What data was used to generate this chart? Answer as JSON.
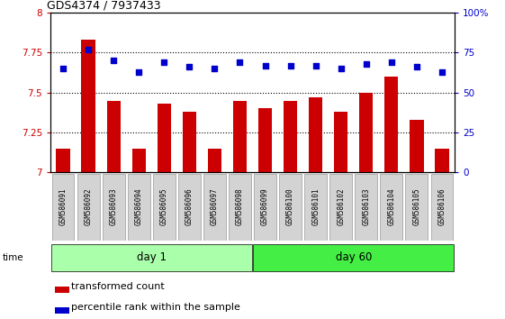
{
  "title": "GDS4374 / 7937433",
  "samples": [
    "GSM586091",
    "GSM586092",
    "GSM586093",
    "GSM586094",
    "GSM586095",
    "GSM586096",
    "GSM586097",
    "GSM586098",
    "GSM586099",
    "GSM586100",
    "GSM586101",
    "GSM586102",
    "GSM586103",
    "GSM586104",
    "GSM586105",
    "GSM586106"
  ],
  "bar_values": [
    7.15,
    7.83,
    7.45,
    7.15,
    7.43,
    7.38,
    7.15,
    7.45,
    7.4,
    7.45,
    7.47,
    7.38,
    7.5,
    7.6,
    7.33,
    7.15
  ],
  "dot_values": [
    65,
    77,
    70,
    63,
    69,
    66,
    65,
    69,
    67,
    67,
    67,
    65,
    68,
    69,
    66,
    63
  ],
  "bar_color": "#cc0000",
  "dot_color": "#0000cc",
  "ylim_left": [
    7.0,
    8.0
  ],
  "ylim_right": [
    0,
    100
  ],
  "yticks_left": [
    7.0,
    7.25,
    7.5,
    7.75,
    8.0
  ],
  "yticks_right": [
    0,
    25,
    50,
    75,
    100
  ],
  "ytick_labels_left": [
    "7",
    "7.25",
    "7.5",
    "7.75",
    "8"
  ],
  "ytick_labels_right": [
    "0",
    "25",
    "50",
    "75",
    "100%"
  ],
  "group1_label": "day 1",
  "group2_label": "day 60",
  "group1_count": 8,
  "group2_count": 8,
  "group1_color": "#aaffaa",
  "group2_color": "#44ee44",
  "time_label": "time",
  "legend_bar_label": "transformed count",
  "legend_dot_label": "percentile rank within the sample",
  "tick_label_bg": "#d3d3d3",
  "title_fontsize": 9,
  "bar_width": 0.55
}
